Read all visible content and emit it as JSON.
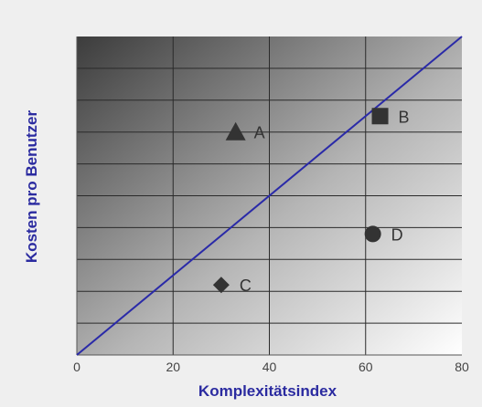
{
  "chart_data": {
    "type": "scatter",
    "title": "",
    "xlabel": "Komplexitätsindex",
    "ylabel": "Kosten pro Benutzer",
    "xlim": [
      0,
      80
    ],
    "ylim": [
      0,
      100
    ],
    "x_ticks": [
      "0",
      "20",
      "40",
      "60",
      "80"
    ],
    "grid": true,
    "points": [
      {
        "label": "A",
        "x": 33,
        "y": 70,
        "marker": "triangle"
      },
      {
        "label": "B",
        "x": 63,
        "y": 75,
        "marker": "square"
      },
      {
        "label": "C",
        "x": 30,
        "y": 22,
        "marker": "diamond"
      },
      {
        "label": "D",
        "x": 61.5,
        "y": 38,
        "marker": "circle"
      }
    ],
    "trendline": {
      "x": [
        0,
        80
      ],
      "y": [
        0,
        100
      ],
      "color": "#2a2aa8"
    },
    "colors": {
      "axis_title": "#2b2ba0",
      "marker": "#333333"
    }
  }
}
